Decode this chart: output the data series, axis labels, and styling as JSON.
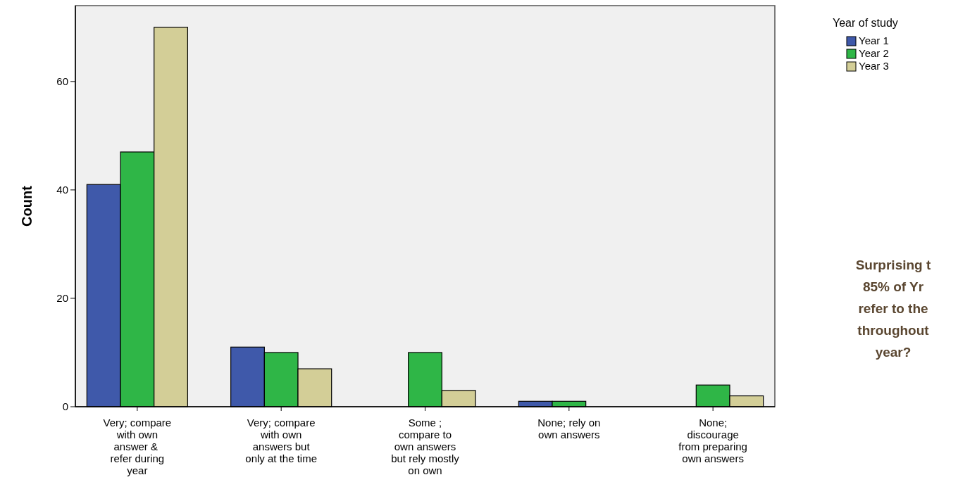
{
  "chart_data": {
    "type": "bar",
    "ylabel": "Count",
    "legend_title": "Year of study",
    "legend": "top right",
    "categories": [
      "Very; compare\nwith own\nanswer & \nrefer during\nyear",
      "Very; compare\nwith own\nanswers but\nonly at the time",
      "Some ;\ncompare to\nown answers\nbut rely mostly\non own",
      "None; rely on\nown answers",
      "None;\ndiscourage\nfrom preparing\nown answers"
    ],
    "series": [
      {
        "name": "Year 1",
        "color": "#3f59aa",
        "values": [
          41,
          11,
          0,
          1,
          0
        ]
      },
      {
        "name": "Year 2",
        "color": "#2fb647",
        "values": [
          47,
          10,
          10,
          1,
          4
        ]
      },
      {
        "name": "Year 3",
        "color": "#d3ce97",
        "values": [
          70,
          7,
          3,
          0,
          2
        ]
      }
    ],
    "ylim": [
      0,
      74
    ],
    "yticks": [
      0,
      20,
      40,
      60
    ],
    "annotations": [
      "Surprising t\n85% of Yr\nrefer to the\nthroughout\nyear?"
    ]
  }
}
